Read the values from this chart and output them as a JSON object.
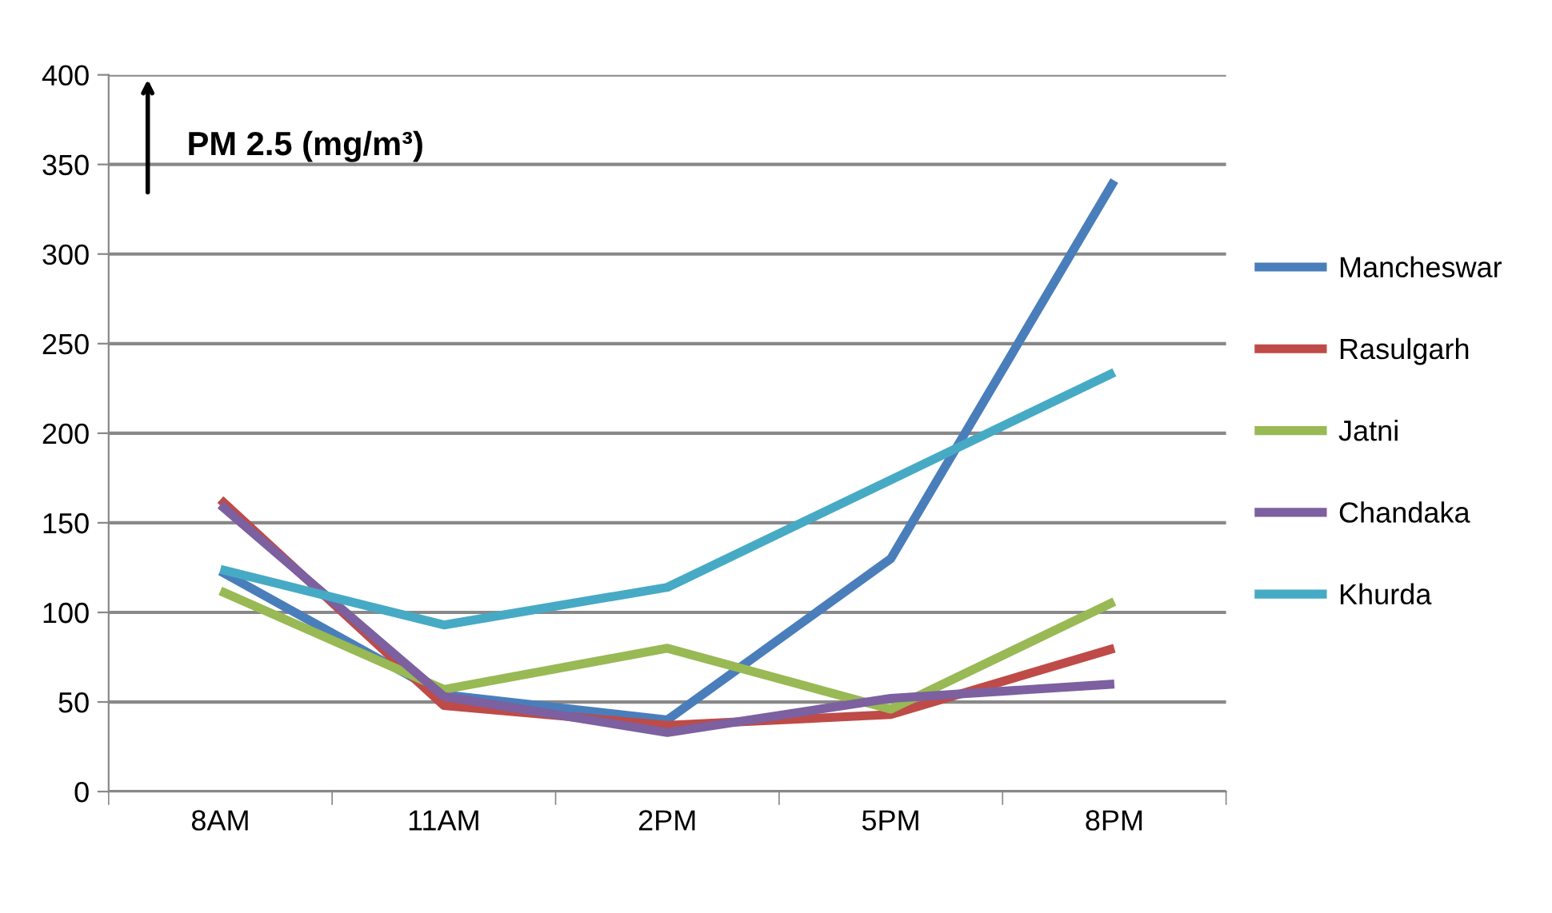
{
  "chart_data": {
    "type": "line",
    "annotations": [
      "PM 2.5 (mg/m³)"
    ],
    "categories": [
      "8AM",
      "11AM",
      "2PM",
      "5PM",
      "8PM"
    ],
    "series": [
      {
        "name": "Mancheswar",
        "color": "#4a7ebb",
        "values": [
          123,
          54,
          40,
          130,
          341
        ]
      },
      {
        "name": "Rasulgarh",
        "color": "#be4b48",
        "values": [
          163,
          48,
          37,
          43,
          80
        ]
      },
      {
        "name": "Jatni",
        "color": "#98b954",
        "values": [
          112,
          57,
          80,
          46,
          106
        ]
      },
      {
        "name": "Chandaka",
        "color": "#7d60a0",
        "values": [
          160,
          53,
          33,
          52,
          60
        ]
      },
      {
        "name": "Khurda",
        "color": "#46aac5",
        "values": [
          124,
          93,
          114,
          174,
          234
        ]
      }
    ],
    "ylim": [
      0,
      400
    ],
    "yticks": [
      0,
      50,
      100,
      150,
      200,
      250,
      300,
      350,
      400
    ],
    "grid": "y",
    "legend": "right",
    "marker": "none",
    "line_style": "solid"
  }
}
